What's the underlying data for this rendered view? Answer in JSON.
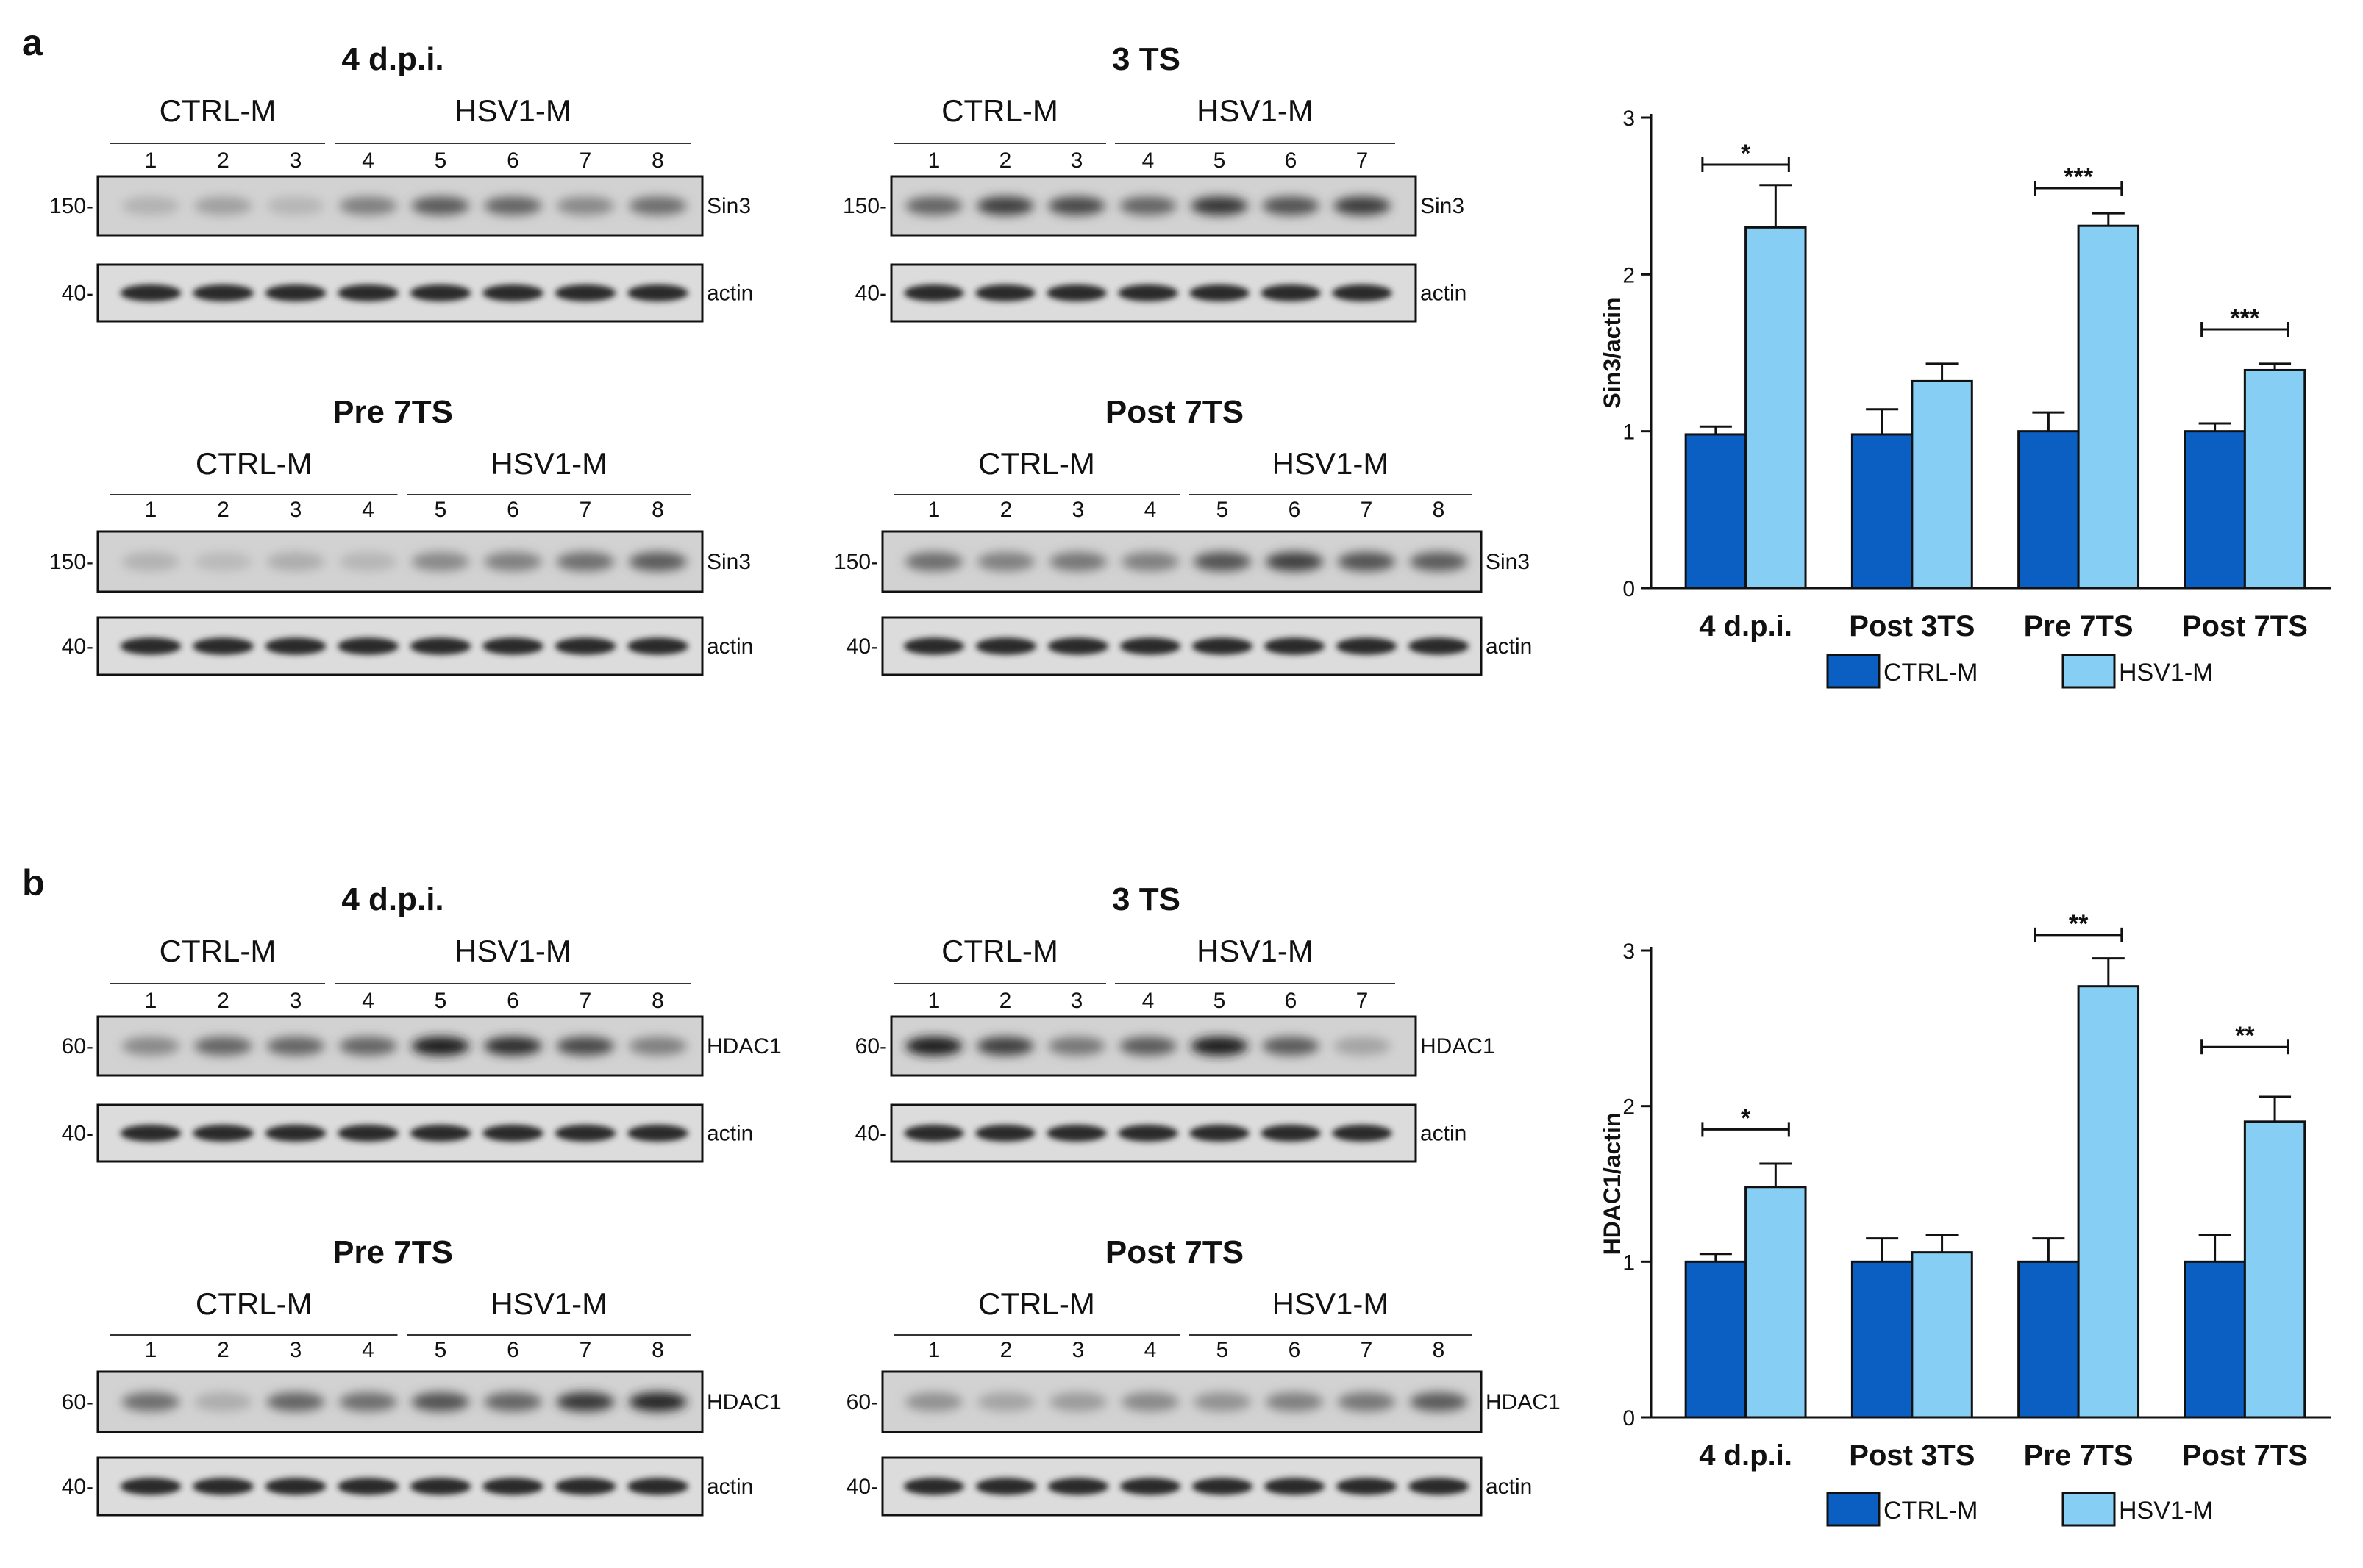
{
  "panels": [
    {
      "letter": "a",
      "protein": "Sin3",
      "marker_protein": "Sin3",
      "marker_kda": "150-",
      "actin_kda": "40-",
      "actin_label": "actin",
      "blots": [
        {
          "title": "4 d.p.i.",
          "ctrl_label": "CTRL-M",
          "hsv_label": "HSV1-M",
          "ctrl_lanes": [
            "1",
            "2",
            "3"
          ],
          "hsv_lanes": [
            "4",
            "5",
            "6",
            "7",
            "8"
          ]
        },
        {
          "title": "3 TS",
          "ctrl_label": "CTRL-M",
          "hsv_label": "HSV1-M",
          "ctrl_lanes": [
            "1",
            "2",
            "3"
          ],
          "hsv_lanes": [
            "4",
            "5",
            "6",
            "7"
          ]
        },
        {
          "title": "Pre 7TS",
          "ctrl_label": "CTRL-M",
          "hsv_label": "HSV1-M",
          "ctrl_lanes": [
            "1",
            "2",
            "3",
            "4"
          ],
          "hsv_lanes": [
            "5",
            "6",
            "7",
            "8"
          ]
        },
        {
          "title": "Post 7TS",
          "ctrl_label": "CTRL-M",
          "hsv_label": "HSV1-M",
          "ctrl_lanes": [
            "1",
            "2",
            "3",
            "4"
          ],
          "hsv_lanes": [
            "5",
            "6",
            "7",
            "8"
          ]
        }
      ],
      "band_intensity": [
        [
          [
            0.12,
            0.22,
            0.1
          ],
          [
            0.4,
            0.6,
            0.55,
            0.35,
            0.5
          ]
        ],
        [
          [
            0.55,
            0.75,
            0.7
          ],
          [
            0.55,
            0.8,
            0.65,
            0.78
          ]
        ],
        [
          [
            0.12,
            0.08,
            0.15,
            0.1
          ],
          [
            0.35,
            0.4,
            0.5,
            0.6
          ]
        ],
        [
          [
            0.5,
            0.4,
            0.45,
            0.4
          ],
          [
            0.65,
            0.75,
            0.65,
            0.6
          ]
        ]
      ]
    },
    {
      "letter": "b",
      "protein": "HDAC1",
      "marker_protein": "HDAC1",
      "marker_kda": "60-",
      "actin_kda": "40-",
      "actin_label": "actin",
      "blots": [
        {
          "title": "4 d.p.i.",
          "ctrl_label": "CTRL-M",
          "hsv_label": "HSV1-M",
          "ctrl_lanes": [
            "1",
            "2",
            "3"
          ],
          "hsv_lanes": [
            "4",
            "5",
            "6",
            "7",
            "8"
          ]
        },
        {
          "title": "3 TS",
          "ctrl_label": "CTRL-M",
          "hsv_label": "HSV1-M",
          "ctrl_lanes": [
            "1",
            "2",
            "3"
          ],
          "hsv_lanes": [
            "4",
            "5",
            "6",
            "7"
          ]
        },
        {
          "title": "Pre 7TS",
          "ctrl_label": "CTRL-M",
          "hsv_label": "HSV1-M",
          "ctrl_lanes": [
            "1",
            "2",
            "3",
            "4"
          ],
          "hsv_lanes": [
            "5",
            "6",
            "7",
            "8"
          ]
        },
        {
          "title": "Post 7TS",
          "ctrl_label": "CTRL-M",
          "hsv_label": "HSV1-M",
          "ctrl_lanes": [
            "1",
            "2",
            "3",
            "4"
          ],
          "hsv_lanes": [
            "5",
            "6",
            "7",
            "8"
          ]
        }
      ],
      "band_intensity": [
        [
          [
            0.35,
            0.55,
            0.55
          ],
          [
            0.55,
            0.95,
            0.85,
            0.7,
            0.4
          ]
        ],
        [
          [
            0.95,
            0.75,
            0.45
          ],
          [
            0.6,
            0.95,
            0.6,
            0.2
          ]
        ],
        [
          [
            0.5,
            0.15,
            0.55,
            0.5
          ],
          [
            0.65,
            0.55,
            0.8,
            0.9
          ]
        ],
        [
          [
            0.3,
            0.2,
            0.25,
            0.35
          ],
          [
            0.3,
            0.4,
            0.45,
            0.6
          ]
        ]
      ]
    }
  ],
  "chart_data": [
    {
      "type": "bar",
      "categories": [
        "4 d.p.i.",
        "Post 3TS",
        "Pre 7TS",
        "Post 7TS"
      ],
      "series": [
        {
          "name": "CTRL-M",
          "values": [
            0.98,
            0.98,
            1.0,
            1.0
          ],
          "errors": [
            0.05,
            0.16,
            0.12,
            0.05
          ],
          "color": "#0b5fc2"
        },
        {
          "name": "HSV1-M",
          "values": [
            2.3,
            1.32,
            2.31,
            1.39
          ],
          "errors": [
            0.27,
            0.11,
            0.08,
            0.04
          ],
          "color": "#86cef4"
        }
      ],
      "ylabel": "Sin3/actin",
      "ylim": [
        0,
        3
      ],
      "yticks": [
        "0",
        "1",
        "2",
        "3"
      ],
      "significance": [
        {
          "category_index": 0,
          "label": "*",
          "level": 2.7
        },
        {
          "category_index": 2,
          "label": "***",
          "level": 2.55
        },
        {
          "category_index": 3,
          "label": "***",
          "level": 1.65
        }
      ],
      "legend": "bottom"
    },
    {
      "type": "bar",
      "categories": [
        "4 d.p.i.",
        "Post 3TS",
        "Pre 7TS",
        "Post 7TS"
      ],
      "series": [
        {
          "name": "CTRL-M",
          "values": [
            1.0,
            1.0,
            1.0,
            1.0
          ],
          "errors": [
            0.05,
            0.15,
            0.15,
            0.17
          ],
          "color": "#0b5fc2"
        },
        {
          "name": "HSV1-M",
          "values": [
            1.48,
            1.06,
            2.77,
            1.9
          ],
          "errors": [
            0.15,
            0.11,
            0.18,
            0.16
          ],
          "color": "#86cef4"
        }
      ],
      "ylabel": "HDAC1/actin",
      "ylim": [
        0,
        3
      ],
      "yticks": [
        "0",
        "1",
        "2",
        "3"
      ],
      "significance": [
        {
          "category_index": 0,
          "label": "*",
          "level": 1.85
        },
        {
          "category_index": 2,
          "label": "**",
          "level": 3.1
        },
        {
          "category_index": 3,
          "label": "**",
          "level": 2.38
        }
      ],
      "legend": "bottom"
    }
  ]
}
